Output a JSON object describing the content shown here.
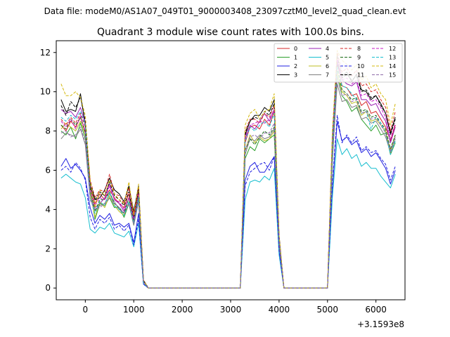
{
  "suptitle": "Data file: modeM0/AS1A07_049T01_9000003408_23097cztM0_level2_quad_clean.evt",
  "chart_data": {
    "type": "line",
    "title": "Quadrant 3 module wise count rates with 100.0s bins.",
    "xlabel": "",
    "ylabel": "",
    "x_offset_label": "+3.1593e8",
    "xlim": [
      -600,
      6600
    ],
    "ylim": [
      -0.6,
      12.6
    ],
    "xticks": [
      0,
      1000,
      2000,
      3000,
      4000,
      5000,
      6000
    ],
    "yticks": [
      0,
      2,
      4,
      6,
      8,
      10,
      12
    ],
    "grid": false,
    "legend": {
      "placement": "top-right",
      "columns": 4
    },
    "x": [
      -500,
      -400,
      -300,
      -200,
      -100,
      0,
      100,
      200,
      300,
      400,
      500,
      600,
      700,
      800,
      900,
      1000,
      1100,
      1200,
      1300,
      1400,
      1500,
      1600,
      1700,
      1800,
      1900,
      2000,
      2100,
      2200,
      2300,
      2400,
      2500,
      2600,
      2700,
      2800,
      2900,
      3000,
      3100,
      3200,
      3300,
      3400,
      3500,
      3600,
      3700,
      3800,
      3900,
      4000,
      4100,
      4200,
      4300,
      4400,
      4500,
      4600,
      4700,
      4800,
      4900,
      5000,
      5100,
      5200,
      5300,
      5400,
      5500,
      5600,
      5700,
      5800,
      5900,
      6000,
      6100,
      6200,
      6300,
      6400
    ],
    "series": [
      {
        "name": "0",
        "color": "#d62728",
        "dash": false,
        "values": [
          8.3,
          8.0,
          8.5,
          8.2,
          8.7,
          8.0,
          5.2,
          4.3,
          4.8,
          4.5,
          5.0,
          4.6,
          4.3,
          4.1,
          4.8,
          3.6,
          4.9,
          0.3,
          0,
          0,
          0,
          0,
          0,
          0,
          0,
          0,
          0,
          0,
          0,
          0,
          0,
          0,
          0,
          0,
          0,
          0,
          0,
          0,
          7.4,
          8.2,
          8.3,
          8.1,
          8.6,
          8.3,
          9.0,
          2.5,
          0,
          0,
          0,
          0,
          0,
          0,
          0,
          0,
          0,
          0,
          7.0,
          11.5,
          10.3,
          10.2,
          9.8,
          9.9,
          9.3,
          9.5,
          8.9,
          9.0,
          8.6,
          8.2,
          7.5,
          8.3
        ]
      },
      {
        "name": "1",
        "color": "#2ca02c",
        "dash": false,
        "values": [
          8.0,
          7.8,
          8.2,
          7.6,
          8.4,
          7.6,
          5.0,
          3.5,
          4.3,
          4.2,
          4.6,
          4.1,
          4.1,
          3.6,
          4.3,
          3.2,
          4.5,
          0.3,
          0,
          0,
          0,
          0,
          0,
          0,
          0,
          0,
          0,
          0,
          0,
          0,
          0,
          0,
          0,
          0,
          0,
          0,
          0,
          0,
          6.6,
          7.2,
          7.0,
          7.6,
          7.4,
          7.6,
          7.8,
          2.3,
          0,
          0,
          0,
          0,
          0,
          0,
          0,
          0,
          0,
          0,
          6.4,
          10.8,
          9.8,
          9.5,
          9.0,
          9.2,
          8.6,
          8.3,
          8.0,
          8.3,
          7.8,
          7.9,
          6.8,
          7.4
        ]
      },
      {
        "name": "2",
        "color": "#1f1fe0",
        "dash": false,
        "values": [
          6.2,
          6.6,
          6.1,
          6.3,
          6.0,
          5.6,
          4.1,
          3.3,
          3.7,
          3.5,
          3.8,
          3.2,
          3.3,
          3.1,
          3.3,
          2.3,
          3.8,
          0.2,
          0,
          0,
          0,
          0,
          0,
          0,
          0,
          0,
          0,
          0,
          0,
          0,
          0,
          0,
          0,
          0,
          0,
          0,
          0,
          0,
          5.5,
          6.2,
          6.4,
          5.9,
          5.9,
          6.3,
          6.7,
          1.9,
          0,
          0,
          0,
          0,
          0,
          0,
          0,
          0,
          0,
          0,
          5.0,
          8.5,
          7.5,
          7.7,
          7.3,
          7.5,
          6.9,
          7.1,
          6.7,
          6.9,
          6.5,
          6.1,
          5.3,
          6.0
        ]
      },
      {
        "name": "3",
        "color": "#000000",
        "dash": false,
        "values": [
          9.6,
          9.0,
          9.1,
          9.0,
          9.9,
          8.3,
          5.2,
          4.5,
          4.6,
          5.0,
          5.6,
          5.0,
          4.8,
          4.4,
          5.2,
          3.9,
          5.2,
          0.4,
          0,
          0,
          0,
          0,
          0,
          0,
          0,
          0,
          0,
          0,
          0,
          0,
          0,
          0,
          0,
          0,
          0,
          0,
          0,
          0,
          7.8,
          8.5,
          8.8,
          8.8,
          9.2,
          9.0,
          9.6,
          2.7,
          0,
          0,
          0,
          0,
          0,
          0,
          0,
          0,
          0,
          0,
          7.6,
          11.4,
          10.8,
          11.0,
          10.5,
          10.9,
          10.1,
          10.0,
          9.6,
          9.8,
          9.4,
          8.9,
          7.9,
          8.7
        ]
      },
      {
        "name": "4",
        "color": "#9a1fb4",
        "dash": false,
        "values": [
          9.1,
          8.9,
          9.0,
          8.7,
          9.2,
          8.4,
          4.8,
          4.1,
          4.3,
          4.6,
          5.3,
          4.5,
          4.3,
          3.9,
          4.6,
          3.5,
          4.6,
          0.4,
          0,
          0,
          0,
          0,
          0,
          0,
          0,
          0,
          0,
          0,
          0,
          0,
          0,
          0,
          0,
          0,
          0,
          0,
          0,
          0,
          7.6,
          8.3,
          8.1,
          8.5,
          8.9,
          8.5,
          9.1,
          2.6,
          0,
          0,
          0,
          0,
          0,
          0,
          0,
          0,
          0,
          0,
          7.4,
          11.6,
          10.6,
          10.4,
          10.3,
          10.5,
          9.6,
          9.6,
          9.3,
          9.4,
          8.9,
          8.5,
          7.4,
          8.2
        ]
      },
      {
        "name": "5",
        "color": "#17becf",
        "dash": false,
        "values": [
          5.6,
          5.8,
          5.6,
          5.4,
          5.3,
          4.6,
          3.0,
          2.8,
          3.1,
          3.0,
          3.3,
          2.8,
          2.7,
          2.6,
          2.9,
          2.1,
          3.3,
          0.2,
          0,
          0,
          0,
          0,
          0,
          0,
          0,
          0,
          0,
          0,
          0,
          0,
          0,
          0,
          0,
          0,
          0,
          0,
          0,
          0,
          4.5,
          5.4,
          5.5,
          5.4,
          5.7,
          5.5,
          6.1,
          1.7,
          0,
          0,
          0,
          0,
          0,
          0,
          0,
          0,
          0,
          0,
          4.6,
          7.6,
          6.8,
          7.1,
          6.6,
          6.8,
          6.2,
          6.4,
          6.1,
          6.1,
          5.7,
          5.4,
          5.1,
          5.8
        ]
      },
      {
        "name": "6",
        "color": "#bcbd22",
        "dash": false,
        "values": [
          8.1,
          8.4,
          8.2,
          8.0,
          8.5,
          7.8,
          4.9,
          3.6,
          4.4,
          4.1,
          4.7,
          4.2,
          3.9,
          3.7,
          4.4,
          3.3,
          4.6,
          0.3,
          0,
          0,
          0,
          0,
          0,
          0,
          0,
          0,
          0,
          0,
          0,
          0,
          0,
          0,
          0,
          0,
          0,
          0,
          0,
          0,
          7.0,
          7.8,
          7.4,
          7.7,
          7.5,
          7.6,
          8.0,
          2.4,
          0,
          0,
          0,
          0,
          0,
          0,
          0,
          0,
          0,
          0,
          6.7,
          11.0,
          10.0,
          9.8,
          9.4,
          9.5,
          8.8,
          9.0,
          8.5,
          8.6,
          8.3,
          8.0,
          7.0,
          7.8
        ]
      },
      {
        "name": "7",
        "color": "#7f7f7f",
        "dash": false,
        "values": [
          7.6,
          7.9,
          7.8,
          7.7,
          8.1,
          7.3,
          4.6,
          4.0,
          4.2,
          4.3,
          4.8,
          4.4,
          4.0,
          3.8,
          4.3,
          3.2,
          4.4,
          0.3,
          0,
          0,
          0,
          0,
          0,
          0,
          0,
          0,
          0,
          0,
          0,
          0,
          0,
          0,
          0,
          0,
          0,
          0,
          0,
          0,
          6.8,
          7.6,
          7.5,
          7.8,
          7.6,
          7.7,
          8.1,
          2.4,
          0,
          0,
          0,
          0,
          0,
          0,
          0,
          0,
          0,
          0,
          6.6,
          10.4,
          9.5,
          9.6,
          9.2,
          9.3,
          8.6,
          8.7,
          8.4,
          8.5,
          8.1,
          7.7,
          6.9,
          7.6
        ]
      },
      {
        "name": "8",
        "color": "#d62728",
        "dash": true,
        "values": [
          8.6,
          8.3,
          8.7,
          8.4,
          8.9,
          8.2,
          5.5,
          4.6,
          5.0,
          4.9,
          5.8,
          4.8,
          4.7,
          4.3,
          5.1,
          3.8,
          5.1,
          0.4,
          0,
          0,
          0,
          0,
          0,
          0,
          0,
          0,
          0,
          0,
          0,
          0,
          0,
          0,
          0,
          0,
          0,
          0,
          0,
          0,
          8.0,
          8.6,
          8.6,
          8.4,
          8.9,
          8.7,
          9.3,
          2.6,
          0,
          0,
          0,
          0,
          0,
          0,
          0,
          0,
          0,
          0,
          7.7,
          12.0,
          11.0,
          11.2,
          10.8,
          11.1,
          10.3,
          10.4,
          10.0,
          10.1,
          9.6,
          9.2,
          8.0,
          9.0
        ]
      },
      {
        "name": "9",
        "color": "#1a6b1a",
        "dash": true,
        "values": [
          8.3,
          8.1,
          8.6,
          8.3,
          8.7,
          7.9,
          5.1,
          3.9,
          4.5,
          4.5,
          4.9,
          4.3,
          4.1,
          3.8,
          4.6,
          3.4,
          4.7,
          0.3,
          0,
          0,
          0,
          0,
          0,
          0,
          0,
          0,
          0,
          0,
          0,
          0,
          0,
          0,
          0,
          0,
          0,
          0,
          0,
          0,
          7.0,
          7.6,
          7.3,
          7.7,
          8.0,
          7.8,
          8.2,
          2.4,
          0,
          0,
          0,
          0,
          0,
          0,
          0,
          0,
          0,
          0,
          7.0,
          11.2,
          10.1,
          9.9,
          9.6,
          9.7,
          9.0,
          9.1,
          8.7,
          8.8,
          8.4,
          8.1,
          7.1,
          7.8
        ]
      },
      {
        "name": "10",
        "color": "#1f1fe0",
        "dash": true,
        "values": [
          6.0,
          6.2,
          5.9,
          6.4,
          6.1,
          5.5,
          3.6,
          3.0,
          3.5,
          3.3,
          3.6,
          3.0,
          3.2,
          2.9,
          3.2,
          2.2,
          3.5,
          0.2,
          0,
          0,
          0,
          0,
          0,
          0,
          0,
          0,
          0,
          0,
          0,
          0,
          0,
          0,
          0,
          0,
          0,
          0,
          0,
          0,
          5.2,
          5.9,
          6.1,
          6.3,
          6.4,
          6.0,
          6.7,
          1.9,
          0,
          0,
          0,
          0,
          0,
          0,
          0,
          0,
          0,
          0,
          5.3,
          8.8,
          7.4,
          7.8,
          7.4,
          7.7,
          7.0,
          7.2,
          6.9,
          7.0,
          6.6,
          6.3,
          5.5,
          6.2
        ]
      },
      {
        "name": "11",
        "color": "#000000",
        "dash": true,
        "values": [
          9.3,
          8.8,
          9.5,
          9.2,
          9.7,
          8.5,
          5.4,
          4.5,
          4.9,
          4.7,
          5.4,
          4.7,
          4.5,
          4.2,
          4.9,
          3.6,
          5.0,
          0.4,
          0,
          0,
          0,
          0,
          0,
          0,
          0,
          0,
          0,
          0,
          0,
          0,
          0,
          0,
          0,
          0,
          0,
          0,
          0,
          0,
          7.9,
          8.5,
          8.7,
          8.6,
          9.0,
          8.8,
          9.4,
          2.6,
          0,
          0,
          0,
          0,
          0,
          0,
          0,
          0,
          0,
          0,
          7.7,
          11.8,
          10.7,
          10.9,
          10.6,
          10.8,
          10.0,
          10.1,
          9.7,
          9.8,
          9.3,
          8.9,
          7.8,
          8.6
        ]
      },
      {
        "name": "12",
        "color": "#c71ac7",
        "dash": true,
        "values": [
          8.5,
          8.2,
          8.6,
          8.1,
          8.8,
          7.9,
          5.0,
          4.2,
          4.6,
          4.5,
          5.2,
          4.5,
          4.4,
          4.0,
          4.6,
          3.5,
          4.8,
          0.3,
          0,
          0,
          0,
          0,
          0,
          0,
          0,
          0,
          0,
          0,
          0,
          0,
          0,
          0,
          0,
          0,
          0,
          0,
          0,
          0,
          7.7,
          8.3,
          8.4,
          8.5,
          8.4,
          8.6,
          9.1,
          2.5,
          0,
          0,
          0,
          0,
          0,
          0,
          0,
          0,
          0,
          0,
          7.5,
          11.7,
          10.6,
          10.7,
          10.4,
          10.6,
          9.8,
          9.9,
          9.5,
          9.6,
          9.2,
          8.7,
          7.6,
          8.4
        ]
      },
      {
        "name": "13",
        "color": "#17becf",
        "dash": true,
        "values": [
          8.7,
          8.5,
          8.8,
          8.6,
          9.0,
          8.3,
          4.6,
          3.8,
          4.4,
          4.2,
          4.9,
          4.2,
          4.0,
          3.7,
          4.4,
          3.3,
          4.6,
          0.3,
          0,
          0,
          0,
          0,
          0,
          0,
          0,
          0,
          0,
          0,
          0,
          0,
          0,
          0,
          0,
          0,
          0,
          0,
          0,
          0,
          7.5,
          8.2,
          8.0,
          8.3,
          8.5,
          8.2,
          8.9,
          2.5,
          0,
          0,
          0,
          0,
          0,
          0,
          0,
          0,
          0,
          0,
          7.3,
          11.3,
          10.3,
          10.2,
          9.9,
          9.6,
          8.9,
          9.0,
          8.1,
          8.7,
          8.4,
          7.9,
          6.8,
          7.5
        ]
      },
      {
        "name": "14",
        "color": "#d4b80c",
        "dash": true,
        "values": [
          10.4,
          9.8,
          9.8,
          10.0,
          9.7,
          8.8,
          5.5,
          4.1,
          5.0,
          4.7,
          5.5,
          4.8,
          4.5,
          4.3,
          5.4,
          3.7,
          5.3,
          0.4,
          0,
          0,
          0,
          0,
          0,
          0,
          0,
          0,
          0,
          0,
          0,
          0,
          0,
          0,
          0,
          0,
          0,
          0,
          0,
          0,
          8.3,
          8.9,
          9.1,
          8.6,
          9.0,
          9.1,
          9.9,
          2.7,
          0,
          0,
          0,
          0,
          0,
          0,
          0,
          0,
          0,
          0,
          8.0,
          12.1,
          11.6,
          11.4,
          11.1,
          11.4,
          10.6,
          10.8,
          10.2,
          10.4,
          9.9,
          9.6,
          8.3,
          9.4
        ]
      },
      {
        "name": "15",
        "color": "#8c6aa8",
        "dash": true,
        "values": [
          7.9,
          8.0,
          7.7,
          7.8,
          8.2,
          7.4,
          4.5,
          4.0,
          4.1,
          4.3,
          4.6,
          4.3,
          4.1,
          3.8,
          4.3,
          3.3,
          4.4,
          0.3,
          0,
          0,
          0,
          0,
          0,
          0,
          0,
          0,
          0,
          0,
          0,
          0,
          0,
          0,
          0,
          0,
          0,
          0,
          0,
          0,
          7.0,
          7.7,
          7.8,
          7.6,
          7.9,
          7.9,
          8.4,
          2.4,
          0,
          0,
          0,
          0,
          0,
          0,
          0,
          0,
          0,
          0,
          6.9,
          10.7,
          9.8,
          9.9,
          9.5,
          9.6,
          8.9,
          9.0,
          8.6,
          8.7,
          8.3,
          7.9,
          7.0,
          7.7
        ]
      }
    ]
  }
}
